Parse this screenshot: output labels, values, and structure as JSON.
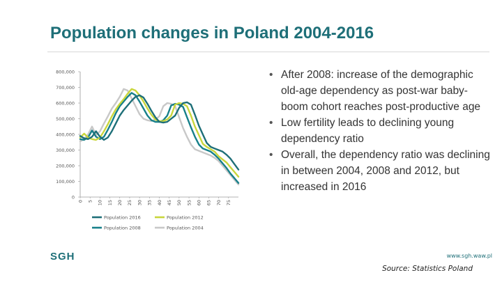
{
  "slide": {
    "title": "Population changes in Poland 2004-2016",
    "bullets": [
      "After 2008: increase of the demographic old-age dependency as post-war baby-boom cohort reaches post-productive age",
      "Low fertility leads to declining young dependency ratio",
      "Overall, the dependency ratio was declining in between 2004, 2008 and 2012, but increased in 2016"
    ],
    "logo": "SGH",
    "url": "www.sgh.waw.pl",
    "source": "Source: Statistics Poland"
  },
  "chart_data": {
    "type": "line",
    "title": "",
    "xlabel": "",
    "ylabel": "",
    "xlim": [
      0,
      80
    ],
    "ylim": [
      0,
      800000
    ],
    "grid": false,
    "legend_position": "bottom",
    "x_ticks": [
      "0",
      "5",
      "10",
      "15",
      "20",
      "25",
      "30",
      "35",
      "40",
      "45",
      "50",
      "55",
      "60",
      "65",
      "70",
      "75"
    ],
    "y_ticks": [
      "0",
      "100,000",
      "200,000",
      "300,000",
      "400,000",
      "500,000",
      "600,000",
      "700,000",
      "800,000"
    ],
    "x": [
      0,
      2,
      4,
      6,
      8,
      10,
      12,
      14,
      16,
      18,
      20,
      22,
      24,
      26,
      28,
      30,
      32,
      34,
      36,
      38,
      40,
      42,
      44,
      46,
      48,
      50,
      52,
      54,
      56,
      58,
      60,
      62,
      64,
      66,
      68,
      70,
      72,
      74,
      76,
      78,
      80
    ],
    "series": [
      {
        "name": "Population 2016",
        "color": "#1e6f78",
        "values": [
          390000,
          375000,
          370000,
          385000,
          420000,
          385000,
          365000,
          380000,
          420000,
          470000,
          520000,
          555000,
          585000,
          615000,
          640000,
          650000,
          635000,
          595000,
          550000,
          510000,
          480000,
          475000,
          480000,
          500000,
          520000,
          570000,
          600000,
          605000,
          590000,
          525000,
          455000,
          400000,
          345000,
          320000,
          310000,
          300000,
          290000,
          270000,
          245000,
          210000,
          175000
        ]
      },
      {
        "name": "Population 2012",
        "color": "#c9d63c",
        "values": [
          380000,
          405000,
          380000,
          370000,
          365000,
          380000,
          420000,
          465000,
          515000,
          560000,
          595000,
          625000,
          660000,
          690000,
          680000,
          650000,
          610000,
          565000,
          525000,
          495000,
          485000,
          485000,
          495000,
          520000,
          590000,
          600000,
          595000,
          580000,
          520000,
          450000,
          395000,
          340000,
          320000,
          305000,
          290000,
          260000,
          240000,
          220000,
          190000,
          160000,
          130000
        ]
      },
      {
        "name": "Population 2008",
        "color": "#17808a",
        "values": [
          370000,
          365000,
          380000,
          425000,
          385000,
          370000,
          385000,
          430000,
          480000,
          535000,
          580000,
          610000,
          640000,
          665000,
          650000,
          610000,
          565000,
          520000,
          490000,
          480000,
          480000,
          490000,
          520000,
          585000,
          595000,
          590000,
          575000,
          510000,
          445000,
          385000,
          335000,
          310000,
          300000,
          290000,
          270000,
          245000,
          215000,
          185000,
          150000,
          120000,
          90000
        ]
      },
      {
        "name": "Population 2004",
        "color": "#c8c8c8",
        "values": [
          355000,
          370000,
          400000,
          450000,
          395000,
          420000,
          470000,
          515000,
          565000,
          600000,
          640000,
          690000,
          680000,
          630000,
          580000,
          530000,
          500000,
          490000,
          485000,
          495000,
          515000,
          580000,
          600000,
          595000,
          580000,
          510000,
          440000,
          385000,
          335000,
          305000,
          295000,
          285000,
          275000,
          265000,
          250000,
          230000,
          200000,
          170000,
          140000,
          110000,
          80000
        ]
      }
    ]
  }
}
